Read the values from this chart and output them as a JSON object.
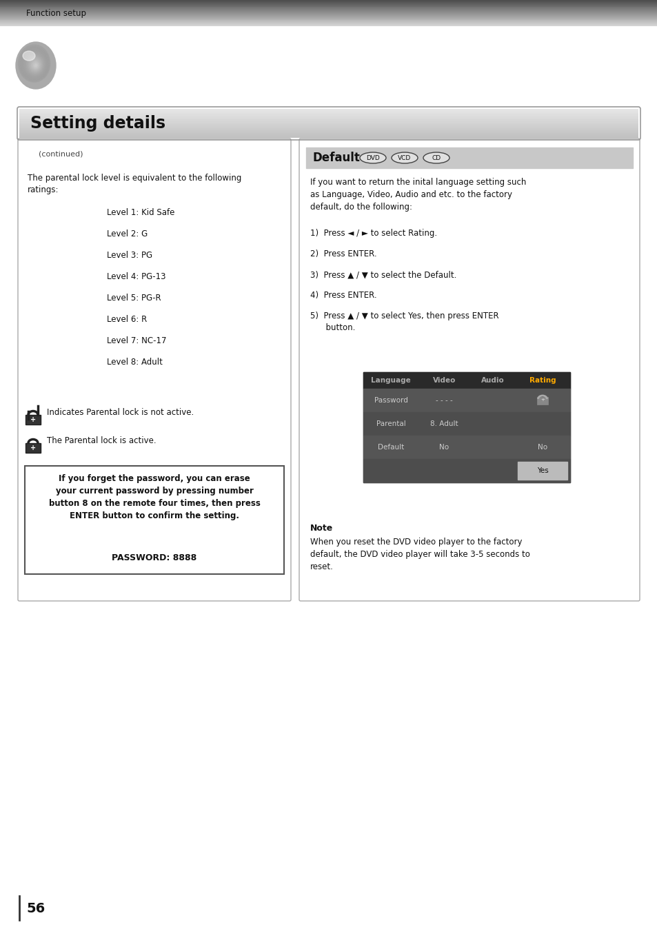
{
  "page_bg": "#ffffff",
  "header_text": "Function setup",
  "section_title": "Setting details",
  "page_number": "56",
  "left_panel_continued": "(continued)",
  "left_panel_text1": "The parental lock level is equivalent to the following\nratings:",
  "levels": [
    "Level 1: Kid Safe",
    "Level 2: G",
    "Level 3: PG",
    "Level 4: PG-13",
    "Level 5: PG-R",
    "Level 6: R",
    "Level 7: NC-17",
    "Level 8: Adult"
  ],
  "lock_text1": "Indicates Parental lock is not active.",
  "lock_text2": "The Parental lock is active.",
  "warning_text": "If you forget the password, you can erase\nyour current password by pressing number\nbutton 8 on the remote four times, then press\nENTER button to confirm the setting.",
  "password_text": "PASSWORD: 8888",
  "default_title": "Default",
  "dvd_labels": [
    "DVD",
    "VCD",
    "CD"
  ],
  "default_intro": "If you want to return the inital language setting such\nas Language, Video, Audio and etc. to the factory\ndefault, do the following:",
  "steps": [
    "1)  Press ◄ / ► to select Rating.",
    "2)  Press ENTER.",
    "3)  Press ▲ / ▼ to select the Default.",
    "4)  Press ENTER.",
    "5)  Press ▲ / ▼ to select Yes, then press ENTER\n      button."
  ],
  "table_headers": [
    "Language",
    "Video",
    "Audio",
    "Rating"
  ],
  "note_title": "Note",
  "note_text": "When you reset the DVD video player to the factory\ndefault, the DVD video player will take 3-5 seconds to\nreset."
}
